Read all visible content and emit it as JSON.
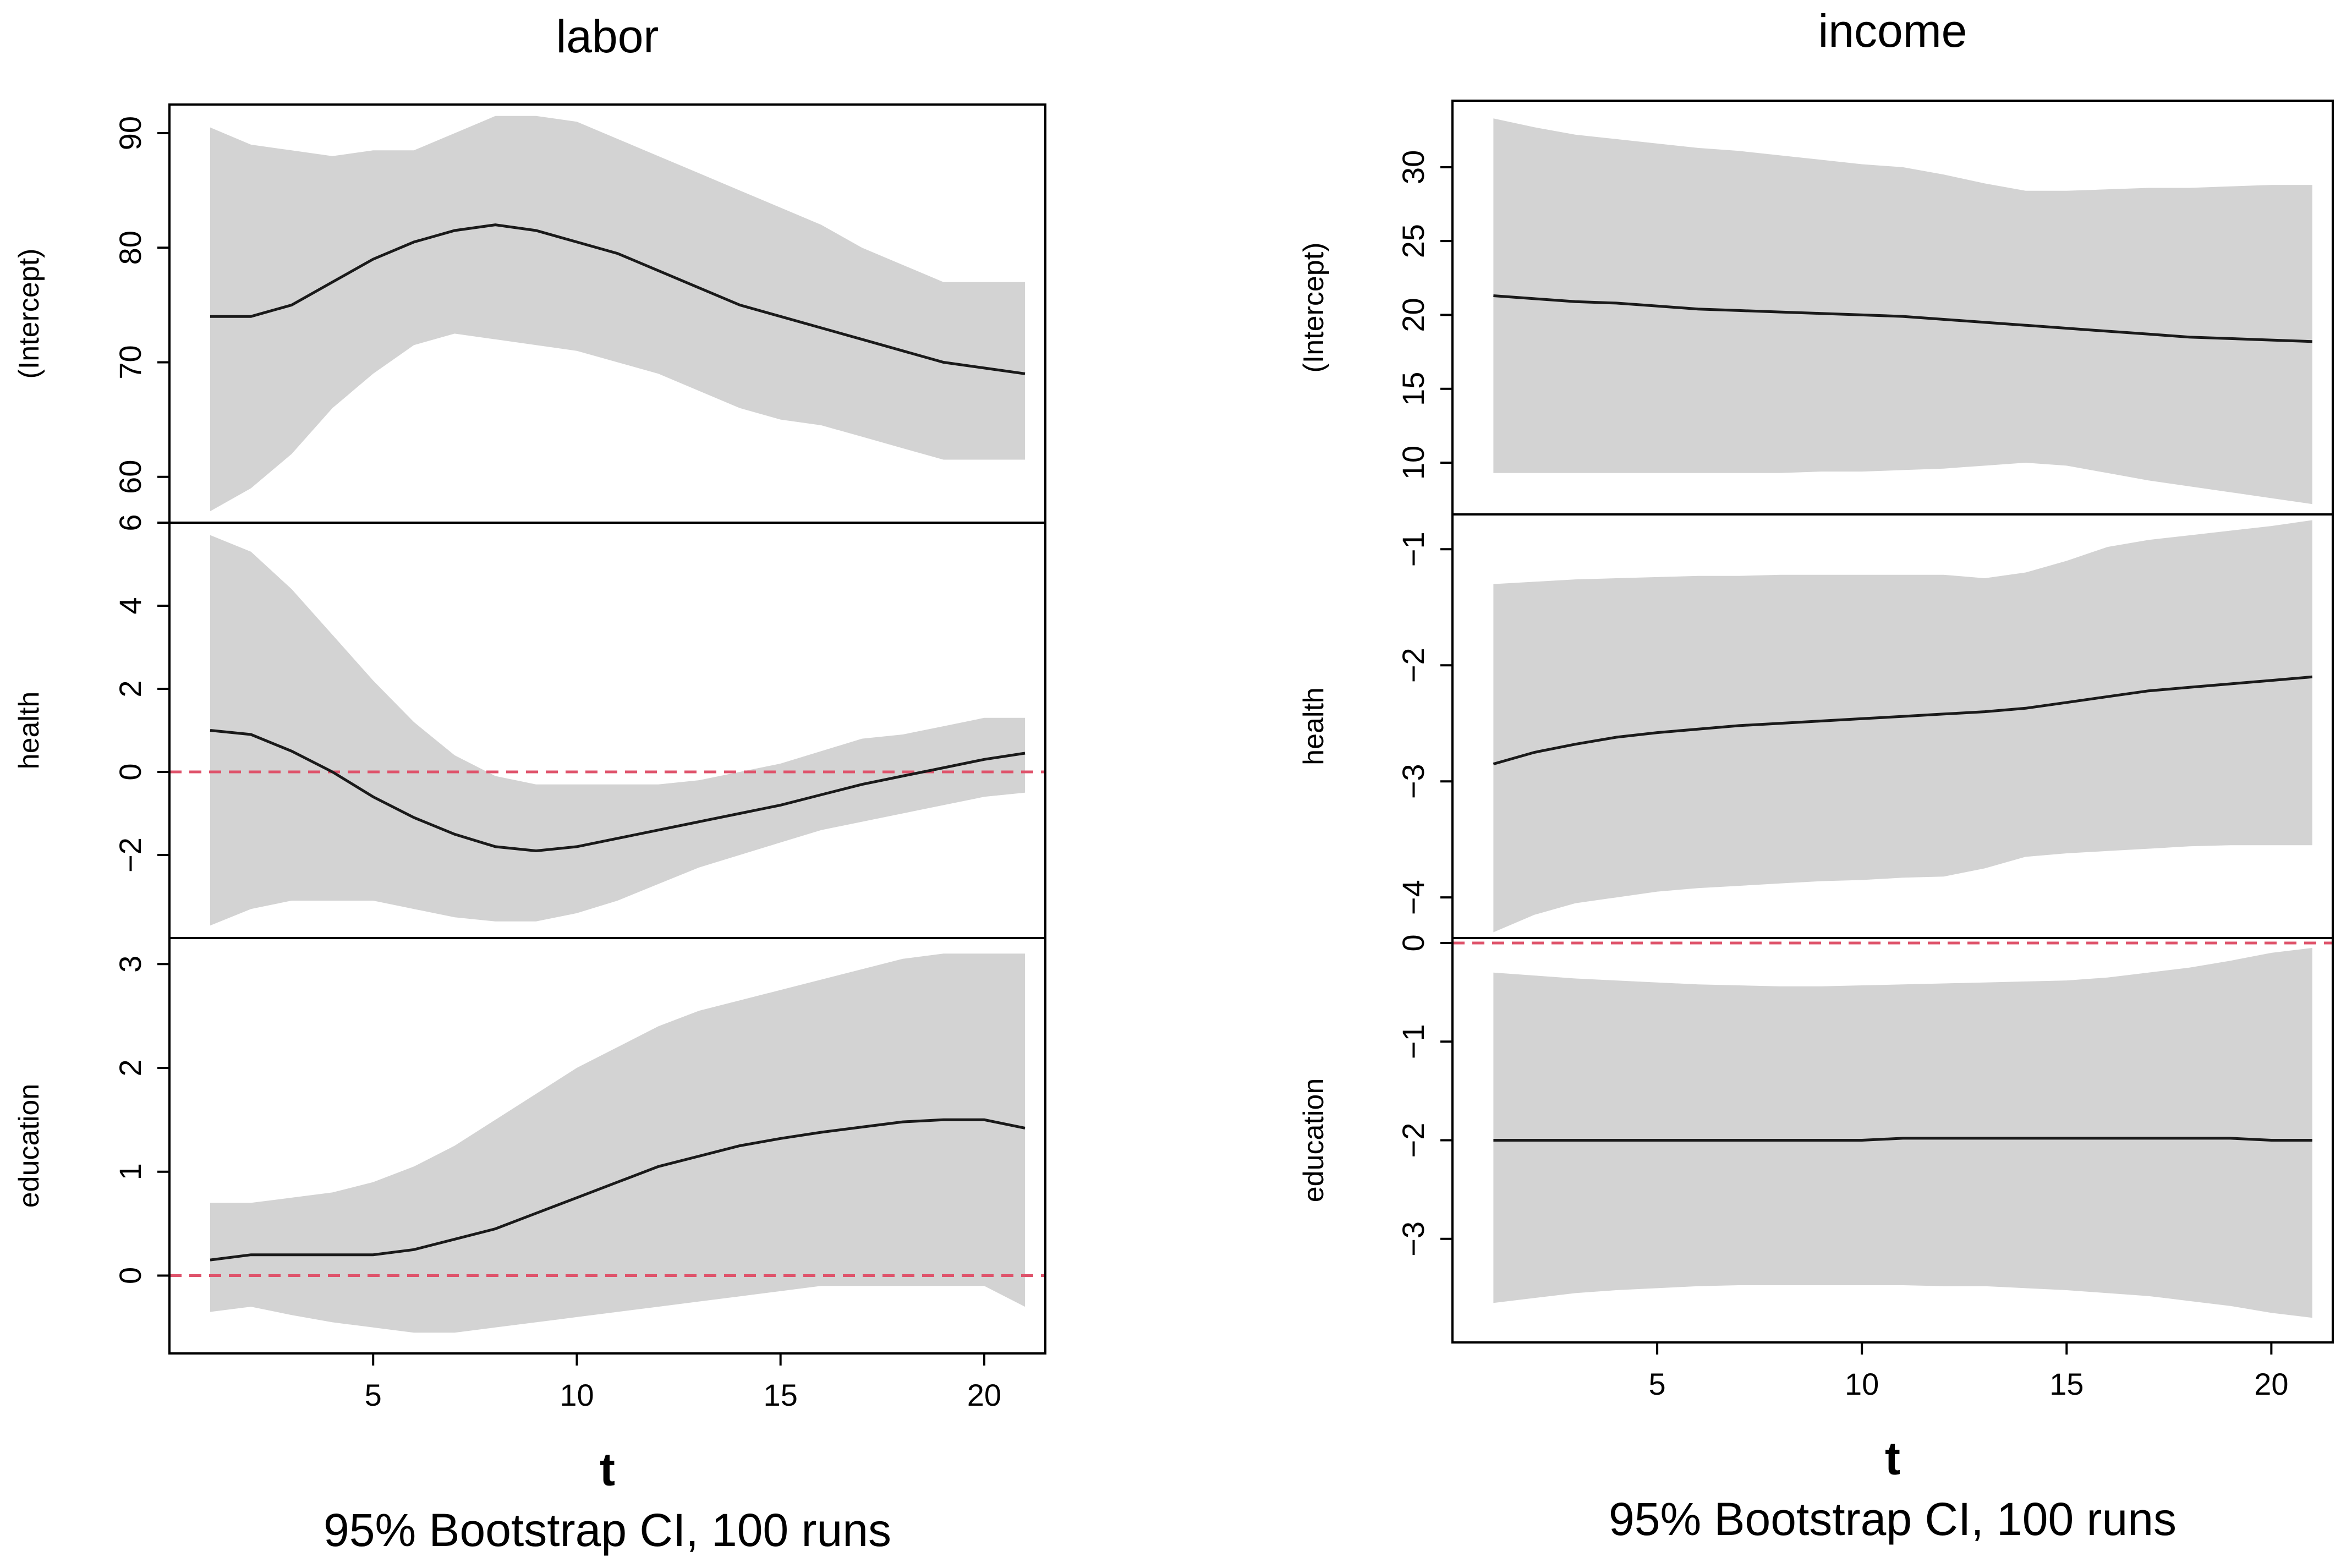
{
  "chart_data": [
    {
      "type": "line",
      "title": "labor",
      "xlabel": "t",
      "subtitle": "95% Bootstrap CI, 100 runs",
      "xlim": [
        0,
        21.5
      ],
      "xticks": [
        5,
        10,
        15,
        20
      ],
      "x": [
        1,
        2,
        3,
        4,
        5,
        6,
        7,
        8,
        9,
        10,
        11,
        12,
        13,
        14,
        15,
        16,
        17,
        18,
        19,
        20,
        21
      ],
      "panels": [
        {
          "ylabel": "(Intercept)",
          "ylim": [
            56,
            92.5
          ],
          "yticks": [
            60,
            70,
            80,
            90
          ],
          "refline": null,
          "estimate": [
            74,
            74,
            75,
            77,
            79,
            80.5,
            81.5,
            82,
            81.5,
            80.5,
            79.5,
            78,
            76.5,
            75,
            74,
            73,
            72,
            71,
            70,
            69.5,
            69
          ],
          "lower": [
            57,
            59,
            62,
            66,
            69,
            71.5,
            72.5,
            72,
            71.5,
            71,
            70,
            69,
            67.5,
            66,
            65,
            64.5,
            63.5,
            62.5,
            61.5,
            61.5,
            61.5
          ],
          "upper": [
            90.5,
            89,
            88.5,
            88,
            88.5,
            88.5,
            90,
            91.5,
            91.5,
            91,
            89.5,
            88,
            86.5,
            85,
            83.5,
            82,
            80,
            78.5,
            77,
            77,
            77
          ]
        },
        {
          "ylabel": "health",
          "ylim": [
            -4,
            6
          ],
          "yticks": [
            -2,
            0,
            2,
            4,
            6
          ],
          "refline": 0,
          "estimate": [
            1,
            0.9,
            0.5,
            0,
            -0.6,
            -1.1,
            -1.5,
            -1.8,
            -1.9,
            -1.8,
            -1.6,
            -1.4,
            -1.2,
            -1,
            -0.8,
            -0.55,
            -0.3,
            -0.1,
            0.1,
            0.3,
            0.45
          ],
          "lower": [
            -3.7,
            -3.3,
            -3.1,
            -3.1,
            -3.1,
            -3.3,
            -3.5,
            -3.6,
            -3.6,
            -3.4,
            -3.1,
            -2.7,
            -2.3,
            -2,
            -1.7,
            -1.4,
            -1.2,
            -1,
            -0.8,
            -0.6,
            -0.5
          ],
          "upper": [
            5.7,
            5.3,
            4.4,
            3.3,
            2.2,
            1.2,
            0.4,
            -0.1,
            -0.3,
            -0.3,
            -0.3,
            -0.3,
            -0.2,
            0,
            0.2,
            0.5,
            0.8,
            0.9,
            1.1,
            1.3,
            1.3
          ]
        },
        {
          "ylabel": "education",
          "ylim": [
            -0.75,
            3.25
          ],
          "yticks": [
            0,
            1,
            2,
            3
          ],
          "refline": 0,
          "estimate": [
            0.15,
            0.2,
            0.2,
            0.2,
            0.2,
            0.25,
            0.35,
            0.45,
            0.6,
            0.75,
            0.9,
            1.05,
            1.15,
            1.25,
            1.32,
            1.38,
            1.43,
            1.48,
            1.5,
            1.5,
            1.42
          ],
          "lower": [
            -0.35,
            -0.3,
            -0.38,
            -0.45,
            -0.5,
            -0.55,
            -0.55,
            -0.5,
            -0.45,
            -0.4,
            -0.35,
            -0.3,
            -0.25,
            -0.2,
            -0.15,
            -0.1,
            -0.1,
            -0.1,
            -0.1,
            -0.1,
            -0.3
          ],
          "upper": [
            0.7,
            0.7,
            0.75,
            0.8,
            0.9,
            1.05,
            1.25,
            1.5,
            1.75,
            2,
            2.2,
            2.4,
            2.55,
            2.65,
            2.75,
            2.85,
            2.95,
            3.05,
            3.1,
            3.1,
            3.1
          ]
        }
      ]
    },
    {
      "type": "line",
      "title": "income",
      "xlabel": "t",
      "subtitle": "95% Bootstrap CI, 100 runs",
      "xlim": [
        0,
        21.5
      ],
      "xticks": [
        5,
        10,
        15,
        20
      ],
      "x": [
        1,
        2,
        3,
        4,
        5,
        6,
        7,
        8,
        9,
        10,
        11,
        12,
        13,
        14,
        15,
        16,
        17,
        18,
        19,
        20,
        21
      ],
      "panels": [
        {
          "ylabel": "(Intercept)",
          "ylim": [
            6.5,
            34.5
          ],
          "yticks": [
            10,
            15,
            20,
            25,
            30
          ],
          "refline": null,
          "estimate": [
            21.3,
            21.1,
            20.9,
            20.8,
            20.6,
            20.4,
            20.3,
            20.2,
            20.1,
            20,
            19.9,
            19.7,
            19.5,
            19.3,
            19.1,
            18.9,
            18.7,
            18.5,
            18.4,
            18.3,
            18.2
          ],
          "lower": [
            9.3,
            9.3,
            9.3,
            9.3,
            9.3,
            9.3,
            9.3,
            9.3,
            9.4,
            9.4,
            9.5,
            9.6,
            9.8,
            10,
            9.8,
            9.3,
            8.8,
            8.4,
            8,
            7.6,
            7.2
          ],
          "upper": [
            33.3,
            32.7,
            32.2,
            31.9,
            31.6,
            31.3,
            31.1,
            30.8,
            30.5,
            30.2,
            30,
            29.5,
            28.9,
            28.4,
            28.4,
            28.5,
            28.6,
            28.6,
            28.7,
            28.8,
            28.8
          ]
        },
        {
          "ylabel": "health",
          "ylim": [
            -4.35,
            -0.7
          ],
          "yticks": [
            -4,
            -3,
            -2,
            -1
          ],
          "refline": null,
          "estimate": [
            -2.85,
            -2.75,
            -2.68,
            -2.62,
            -2.58,
            -2.55,
            -2.52,
            -2.5,
            -2.48,
            -2.46,
            -2.44,
            -2.42,
            -2.4,
            -2.37,
            -2.32,
            -2.27,
            -2.22,
            -2.19,
            -2.16,
            -2.13,
            -2.1
          ],
          "lower": [
            -4.3,
            -4.15,
            -4.05,
            -4,
            -3.95,
            -3.92,
            -3.9,
            -3.88,
            -3.86,
            -3.85,
            -3.83,
            -3.82,
            -3.75,
            -3.65,
            -3.62,
            -3.6,
            -3.58,
            -3.56,
            -3.55,
            -3.55,
            -3.55
          ],
          "upper": [
            -1.3,
            -1.28,
            -1.26,
            -1.25,
            -1.24,
            -1.23,
            -1.23,
            -1.22,
            -1.22,
            -1.22,
            -1.22,
            -1.22,
            -1.25,
            -1.2,
            -1.1,
            -0.98,
            -0.92,
            -0.88,
            -0.84,
            -0.8,
            -0.75
          ]
        },
        {
          "ylabel": "education",
          "ylim": [
            -4.05,
            0.05
          ],
          "yticks": [
            -3,
            -2,
            -1,
            0
          ],
          "refline": 0,
          "estimate": [
            -2,
            -2,
            -2,
            -2,
            -2,
            -2,
            -2,
            -2,
            -2,
            -2,
            -1.98,
            -1.98,
            -1.98,
            -1.98,
            -1.98,
            -1.98,
            -1.98,
            -1.98,
            -1.98,
            -2,
            -2
          ],
          "lower": [
            -3.65,
            -3.6,
            -3.55,
            -3.52,
            -3.5,
            -3.48,
            -3.47,
            -3.47,
            -3.47,
            -3.47,
            -3.47,
            -3.48,
            -3.48,
            -3.5,
            -3.52,
            -3.55,
            -3.58,
            -3.63,
            -3.68,
            -3.75,
            -3.8
          ],
          "upper": [
            -0.3,
            -0.33,
            -0.36,
            -0.38,
            -0.4,
            -0.42,
            -0.43,
            -0.44,
            -0.44,
            -0.43,
            -0.42,
            -0.41,
            -0.4,
            -0.39,
            -0.38,
            -0.35,
            -0.3,
            -0.25,
            -0.18,
            -0.1,
            -0.05
          ]
        }
      ]
    }
  ]
}
